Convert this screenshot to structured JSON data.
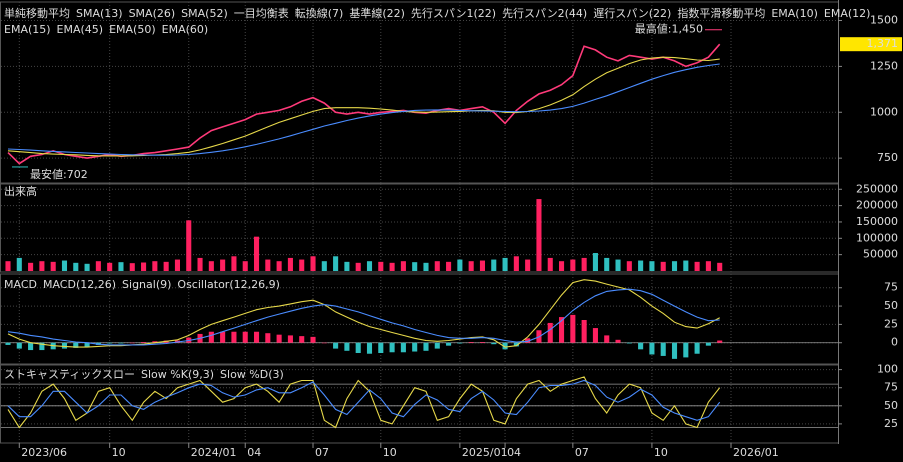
{
  "chart_data": [
    {
      "type": "line",
      "ylim": [
        620,
        1590
      ],
      "yticks": [
        750,
        1000,
        1250,
        1500
      ],
      "grid": true,
      "legend_rows": [
        [
          {
            "name": "単純移動平均",
            "color": "#ffffff"
          },
          {
            "name": "SMA(13)",
            "color": "#e6d84a"
          },
          {
            "name": "SMA(26)",
            "color": "#4a8cff"
          },
          {
            "name": "SMA(52)",
            "color": "#ff7ab0"
          },
          {
            "name": "一目均衡表",
            "color": "#ffffff"
          },
          {
            "name": "転換線(7)",
            "color": "#ff7ab0"
          },
          {
            "name": "基準線(22)",
            "color": "#e6d84a"
          },
          {
            "name": "先行スパン1(22)",
            "color": "#ff5a3a"
          },
          {
            "name": "先行スパン2(44)",
            "color": "#3aaa6a"
          },
          {
            "name": "遅行スパン(22)",
            "color": "#4a8cff"
          },
          {
            "name": "指数平滑移動平均",
            "color": "#ffffff"
          },
          {
            "name": "EMA(10)",
            "color": "#e6d84a"
          },
          {
            "name": "EMA(12)",
            "color": "#4a8cff"
          }
        ],
        [
          {
            "name": "EMA(15)",
            "color": "#ff7ab0"
          },
          {
            "name": "EMA(45)",
            "color": "#ff3a5a"
          },
          {
            "name": "EMA(50)",
            "color": "#3aaa6a"
          },
          {
            "name": "EMA(60)",
            "color": "#aaaaaa"
          }
        ]
      ],
      "high_label": {
        "value": 1450,
        "label": "最高値:1,450"
      },
      "low_label": {
        "value": 702,
        "label": "最安値:702"
      },
      "price_label": {
        "value": 1371,
        "label": "1,371"
      },
      "series": [
        {
          "name": "終値",
          "color": "#ff3a7a",
          "values": [
            780,
            720,
            760,
            770,
            790,
            770,
            760,
            750,
            760,
            770,
            760,
            765,
            775,
            780,
            790,
            800,
            810,
            860,
            900,
            920,
            940,
            960,
            990,
            1000,
            1010,
            1030,
            1060,
            1080,
            1050,
            1000,
            990,
            1000,
            990,
            1000,
            1005,
            1010,
            1000,
            995,
            1010,
            1020,
            1010,
            1020,
            1030,
            1000,
            940,
            1010,
            1060,
            1100,
            1120,
            1150,
            1200,
            1360,
            1340,
            1300,
            1280,
            1310,
            1300,
            1290,
            1300,
            1280,
            1250,
            1270,
            1300,
            1371,
            null
          ]
        },
        {
          "name": "SMA(13)",
          "color": "#e6d84a",
          "values": [
            790,
            785,
            780,
            775,
            772,
            770,
            768,
            765,
            763,
            762,
            762,
            763,
            765,
            767,
            770,
            775,
            782,
            795,
            812,
            830,
            850,
            870,
            895,
            920,
            945,
            965,
            985,
            1005,
            1020,
            1025,
            1025,
            1025,
            1022,
            1018,
            1012,
            1005,
            1002,
            1000,
            1001,
            1003,
            1005,
            1008,
            1010,
            1008,
            1000,
            998,
            1005,
            1020,
            1040,
            1065,
            1095,
            1140,
            1180,
            1215,
            1240,
            1265,
            1285,
            1295,
            1300,
            1298,
            1292,
            1285,
            1282,
            1290,
            null
          ]
        },
        {
          "name": "SMA(26)",
          "color": "#4a8cff",
          "values": [
            800,
            797,
            794,
            790,
            787,
            784,
            781,
            778,
            775,
            772,
            770,
            768,
            767,
            766,
            766,
            767,
            770,
            775,
            782,
            790,
            800,
            812,
            825,
            840,
            855,
            872,
            890,
            907,
            925,
            940,
            955,
            968,
            980,
            990,
            998,
            1005,
            1010,
            1012,
            1013,
            1012,
            1010,
            1008,
            1007,
            1006,
            1004,
            1003,
            1004,
            1007,
            1012,
            1020,
            1032,
            1050,
            1070,
            1090,
            1112,
            1135,
            1158,
            1180,
            1200,
            1218,
            1232,
            1245,
            1255,
            1263,
            null
          ]
        }
      ]
    },
    {
      "type": "bar",
      "title": "出来高",
      "ylim": [
        0,
        260000
      ],
      "yticks": [
        50000,
        100000,
        150000,
        200000,
        250000
      ],
      "grid": true,
      "up_color": "#ff2060",
      "down_color": "#30c0c0",
      "values": [
        30000,
        40000,
        25000,
        30000,
        28000,
        32000,
        25000,
        22000,
        30000,
        25000,
        27000,
        24000,
        26000,
        30000,
        28000,
        35000,
        155000,
        40000,
        30000,
        35000,
        45000,
        30000,
        105000,
        35000,
        30000,
        40000,
        35000,
        45000,
        30000,
        45000,
        28000,
        25000,
        30000,
        28000,
        25000,
        30000,
        27000,
        25000,
        30000,
        28000,
        35000,
        30000,
        32000,
        35000,
        40000,
        45000,
        35000,
        220000,
        40000,
        30000,
        35000,
        40000,
        55000,
        40000,
        35000,
        30000,
        32000,
        30000,
        28000,
        30000,
        32000,
        28000,
        30000,
        25000,
        null
      ]
    },
    {
      "type": "line",
      "ylim": [
        -29,
        91
      ],
      "yticks": [
        0,
        25,
        50,
        75
      ],
      "grid": true,
      "legend_title": "MACD",
      "series": [
        {
          "name": "MACD(12,26)",
          "color": "#e6d84a",
          "values": [
            12,
            5,
            0,
            -2,
            -4,
            -5,
            -6,
            -6,
            -5,
            -4,
            -4,
            -3,
            -2,
            0,
            2,
            4,
            10,
            18,
            25,
            30,
            35,
            40,
            45,
            48,
            50,
            53,
            56,
            58,
            52,
            42,
            35,
            28,
            22,
            18,
            14,
            10,
            6,
            3,
            2,
            3,
            5,
            7,
            8,
            4,
            -6,
            -4,
            8,
            25,
            45,
            65,
            82,
            86,
            84,
            80,
            76,
            72,
            62,
            50,
            40,
            28,
            22,
            20,
            26,
            34,
            null
          ]
        },
        {
          "name": "Signal(9)",
          "color": "#4a8cff",
          "values": [
            15,
            13,
            10,
            8,
            5,
            3,
            1,
            0,
            -2,
            -3,
            -3,
            -3,
            -3,
            -2,
            -1,
            1,
            3,
            6,
            10,
            15,
            20,
            25,
            30,
            35,
            39,
            43,
            47,
            50,
            52,
            50,
            46,
            42,
            37,
            32,
            27,
            23,
            18,
            14,
            10,
            7,
            6,
            6,
            7,
            6,
            3,
            1,
            2,
            8,
            18,
            30,
            44,
            55,
            64,
            70,
            72,
            73,
            71,
            66,
            58,
            50,
            42,
            35,
            30,
            31,
            null
          ]
        },
        {
          "name": "Oscillator(12,26,9)",
          "color": "#ff2060",
          "type": "bar",
          "down_color": "#30c0c0",
          "values": [
            -3,
            -8,
            -10,
            -10,
            -9,
            -8,
            -7,
            -6,
            -3,
            -1,
            -1,
            0,
            1,
            2,
            3,
            3,
            7,
            12,
            15,
            15,
            15,
            15,
            15,
            13,
            11,
            10,
            9,
            8,
            0,
            -8,
            -11,
            -14,
            -15,
            -14,
            -13,
            -13,
            -12,
            -11,
            -8,
            -4,
            -1,
            1,
            1,
            -2,
            -9,
            -5,
            6,
            17,
            27,
            35,
            38,
            31,
            20,
            10,
            4,
            -1,
            -9,
            -16,
            -18,
            -22,
            -20,
            -15,
            -4,
            3,
            null
          ]
        }
      ]
    },
    {
      "type": "line",
      "ylim": [
        0,
        105
      ],
      "yticks": [
        25,
        50,
        75,
        100
      ],
      "hlines": [
        20,
        50,
        80
      ],
      "grid": true,
      "legend_title": "ストキャスティックスロー",
      "categories": [
        null,
        "2023/06",
        null,
        null,
        null,
        null,
        null,
        null,
        null,
        "10",
        null,
        null,
        null,
        null,
        null,
        null,
        "2024/01",
        null,
        null,
        null,
        null,
        "04",
        null,
        null,
        null,
        null,
        null,
        "07",
        null,
        null,
        null,
        null,
        null,
        "10",
        null,
        null,
        null,
        null,
        null,
        null,
        "2025/01",
        null,
        null,
        null,
        "04",
        null,
        null,
        null,
        null,
        null,
        "07",
        null,
        null,
        null,
        null,
        null,
        null,
        "10",
        null,
        null,
        null,
        null,
        null,
        null,
        "2026/01"
      ],
      "series": [
        {
          "name": "Slow %K(9,3)",
          "color": "#e6d84a",
          "values": [
            45,
            20,
            40,
            70,
            80,
            60,
            30,
            40,
            70,
            75,
            50,
            30,
            55,
            70,
            60,
            75,
            80,
            85,
            70,
            55,
            60,
            75,
            80,
            70,
            55,
            80,
            85,
            85,
            30,
            20,
            60,
            85,
            70,
            30,
            25,
            50,
            75,
            70,
            30,
            35,
            60,
            80,
            70,
            30,
            25,
            60,
            80,
            85,
            70,
            80,
            85,
            90,
            60,
            40,
            65,
            80,
            75,
            40,
            30,
            50,
            25,
            20,
            55,
            75,
            null
          ]
        },
        {
          "name": "Slow %D(3)",
          "color": "#4a8cff",
          "values": [
            50,
            35,
            35,
            50,
            70,
            70,
            55,
            40,
            50,
            65,
            65,
            50,
            45,
            55,
            62,
            68,
            75,
            80,
            78,
            68,
            62,
            65,
            72,
            75,
            68,
            68,
            75,
            83,
            65,
            45,
            38,
            55,
            72,
            60,
            40,
            35,
            52,
            65,
            58,
            45,
            42,
            60,
            70,
            58,
            40,
            38,
            55,
            75,
            78,
            78,
            80,
            85,
            78,
            62,
            55,
            62,
            73,
            65,
            48,
            40,
            35,
            30,
            35,
            55,
            null
          ]
        }
      ]
    }
  ]
}
